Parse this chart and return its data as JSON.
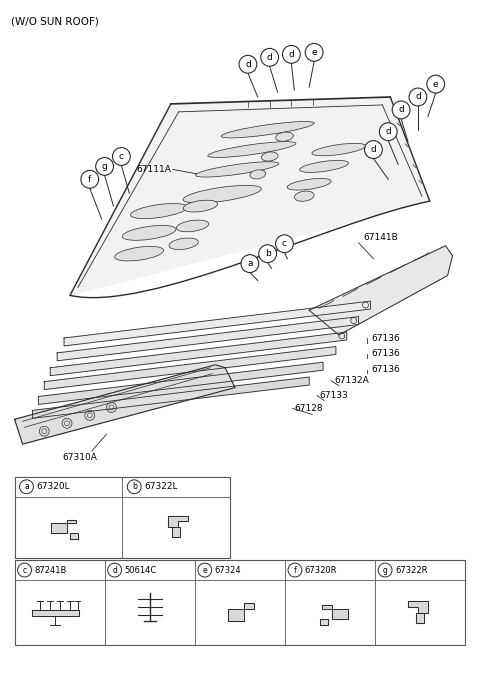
{
  "title": "(W/O SUN ROOF)",
  "bg_color": "#ffffff",
  "line_color": "#2a2a2a",
  "text_color": "#000000",
  "table_row1": [
    {
      "letter": "a",
      "part": "67320L"
    },
    {
      "letter": "b",
      "part": "67322L"
    }
  ],
  "table_row2": [
    {
      "letter": "c",
      "part": "87241B"
    },
    {
      "letter": "d",
      "part": "50614C"
    },
    {
      "letter": "e",
      "part": "67324"
    },
    {
      "letter": "f",
      "part": "67320R"
    },
    {
      "letter": "g",
      "part": "67322R"
    }
  ],
  "roof_panel": {
    "fill": "#f0f0f0",
    "stroke": "#2a2a2a"
  }
}
